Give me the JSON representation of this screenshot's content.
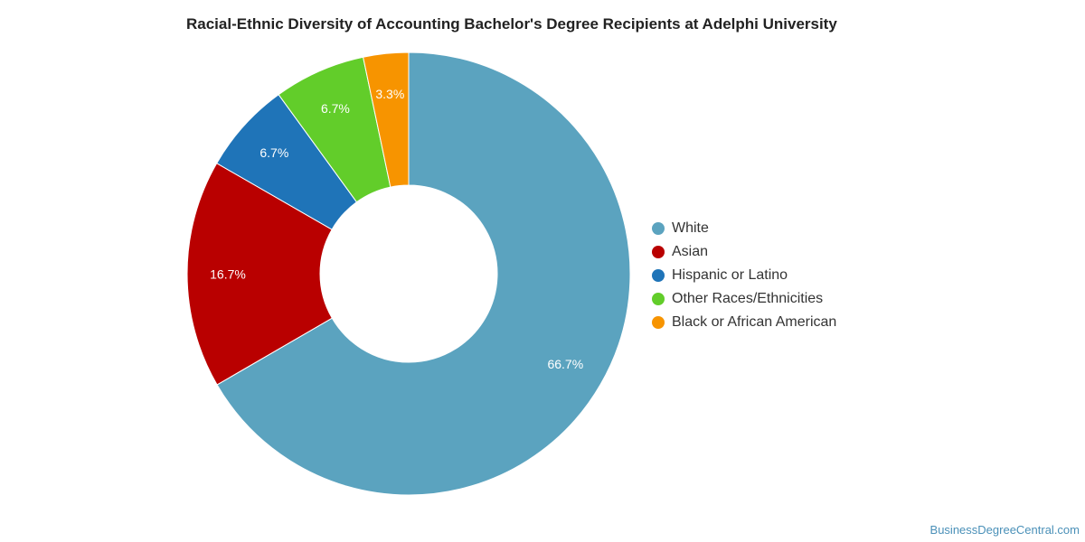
{
  "chart_data": {
    "type": "pie",
    "title": "Racial-Ethnic Diversity of Accounting Bachelor's Degree Recipients at Adelphi University",
    "donut": true,
    "legend_position": "right",
    "slices": [
      {
        "label": "White",
        "value": 66.7,
        "display": "66.7%",
        "color": "#5ba3bf"
      },
      {
        "label": "Asian",
        "value": 16.7,
        "display": "16.7%",
        "color": "#b90000"
      },
      {
        "label": "Hispanic or Latino",
        "value": 6.7,
        "display": "6.7%",
        "color": "#1f74b8"
      },
      {
        "label": "Other Races/Ethnicities",
        "value": 6.7,
        "display": "6.7%",
        "color": "#62cd2a"
      },
      {
        "label": "Black or African American",
        "value": 3.3,
        "display": "3.3%",
        "color": "#f79400"
      }
    ]
  },
  "watermark": "BusinessDegreeCentral.com"
}
